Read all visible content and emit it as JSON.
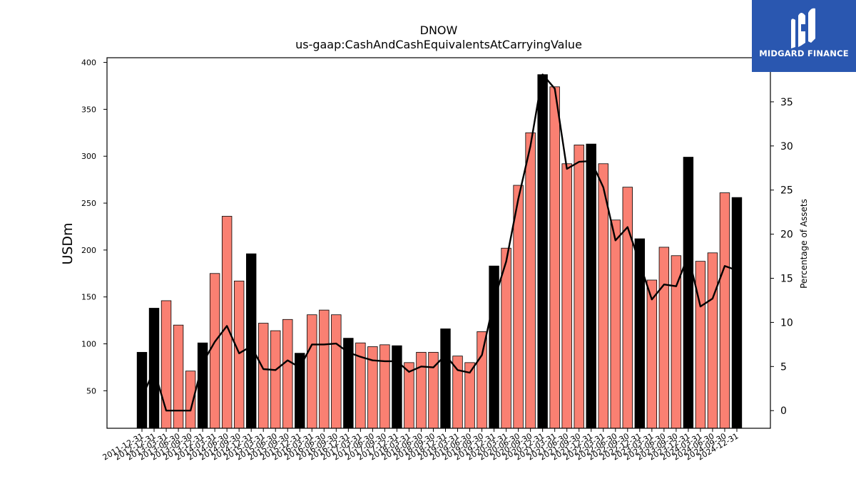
{
  "chart_data": {
    "type": "bar",
    "title": "DNOW",
    "subtitle": "us-gaap:CashAndCashEquivalentsAtCarryingValue",
    "ylabel": "USDm",
    "y2label": "Percentage of Assets",
    "ylim": [
      10,
      405
    ],
    "y2lim": [
      -2,
      40
    ],
    "yticks": [
      50,
      100,
      150,
      200,
      250,
      300,
      350,
      400
    ],
    "y2ticks": [
      0,
      5,
      10,
      15,
      20,
      25,
      30,
      35
    ],
    "colors": {
      "bar": "#fa8072",
      "bar_year_end": "#000000",
      "line": "#000000"
    },
    "categories": [
      "2011-12-31",
      "2012-12-31",
      "2013-03-31",
      "2013-06-30",
      "2013-09-30",
      "2013-12-31",
      "2014-03-31",
      "2014-06-30",
      "2014-09-30",
      "2014-12-31",
      "2015-03-31",
      "2015-06-30",
      "2015-09-30",
      "2015-12-31",
      "2016-03-31",
      "2016-06-30",
      "2016-09-30",
      "2016-12-31",
      "2017-03-31",
      "2017-06-30",
      "2017-09-30",
      "2017-12-31",
      "2018-03-31",
      "2018-06-30",
      "2018-09-30",
      "2018-12-31",
      "2019-03-31",
      "2019-06-30",
      "2019-09-30",
      "2019-12-31",
      "2020-03-31",
      "2020-06-30",
      "2020-09-30",
      "2020-12-31",
      "2021-03-31",
      "2021-06-30",
      "2021-09-30",
      "2021-12-31",
      "2022-03-31",
      "2022-06-30",
      "2022-09-30",
      "2022-12-31",
      "2023-03-31",
      "2023-06-30",
      "2023-09-30",
      "2023-12-31",
      "2024-03-31",
      "2024-06-30",
      "2024-09-30",
      "2024-12-31"
    ],
    "series": [
      {
        "kind": "bar",
        "values": [
          91,
          138,
          146,
          120,
          71,
          101,
          175,
          236,
          167,
          196,
          122,
          114,
          126,
          90,
          131,
          136,
          131,
          106,
          101,
          97,
          99,
          98,
          80,
          91,
          91,
          116,
          87,
          80,
          113,
          183,
          202,
          269,
          325,
          387,
          374,
          292,
          312,
          313,
          292,
          232,
          267,
          212,
          168,
          203,
          194,
          299,
          188,
          197,
          261,
          256
        ]
      },
      {
        "kind": "line",
        "axis": "right",
        "values": [
          1.5,
          4.6,
          0,
          0,
          0,
          5.4,
          7.8,
          9.6,
          6.5,
          7.3,
          4.7,
          4.6,
          5.7,
          4.9,
          7.5,
          7.5,
          7.6,
          6.6,
          6.1,
          5.7,
          5.6,
          5.6,
          4.4,
          5.0,
          4.9,
          6.3,
          4.6,
          4.3,
          6.3,
          12.5,
          16.9,
          24.0,
          30.0,
          38.1,
          36.5,
          27.4,
          28.2,
          28.3,
          25.3,
          19.3,
          20.8,
          16.7,
          12.6,
          14.3,
          14.1,
          17.6,
          11.8,
          12.7,
          16.4,
          15.9
        ]
      }
    ]
  },
  "logo": {
    "text": "MIDGARD FINANCE"
  }
}
